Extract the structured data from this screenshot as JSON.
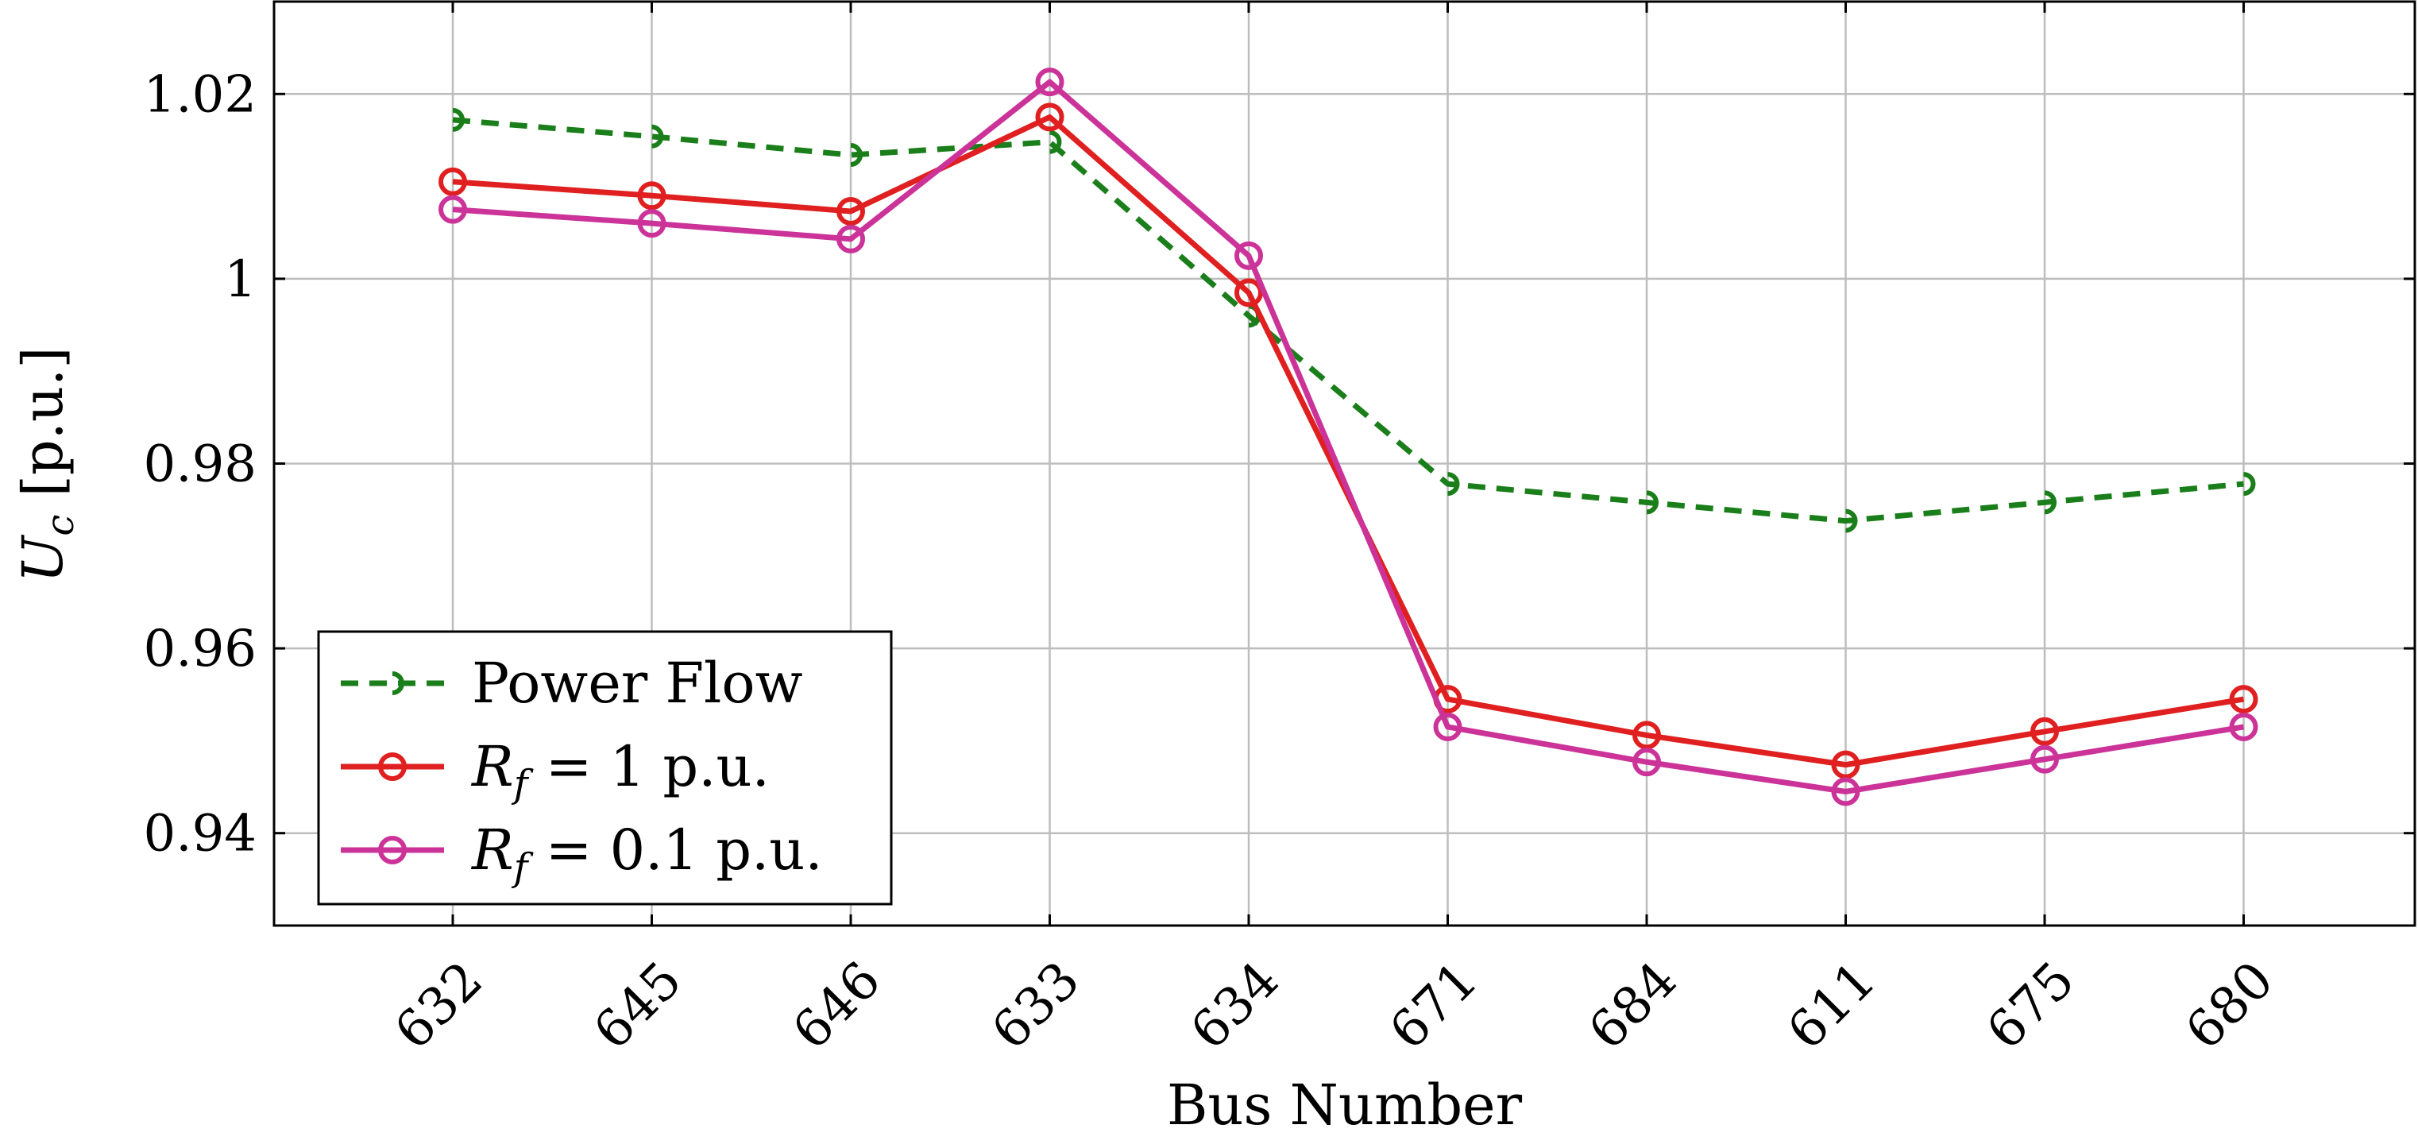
{
  "chart_data": {
    "type": "line",
    "xlabel": "Bus Number",
    "ylabel": "U",
    "ylabel_sub": "c",
    "ylabel_unit": " [p.u.]",
    "categories": [
      "632",
      "645",
      "646",
      "633",
      "634",
      "671",
      "684",
      "611",
      "675",
      "680"
    ],
    "ylim": [
      0.93,
      1.03
    ],
    "yticks": [
      0.94,
      0.96,
      0.98,
      1.0,
      1.02
    ],
    "ytick_labels": [
      "0.94",
      "0.96",
      "0.98",
      "1",
      "1.02"
    ],
    "grid": true,
    "legend_position": "bottom-left",
    "series": [
      {
        "name": "Power Flow",
        "name_parts": {
          "main": "Power Flow",
          "sub": "",
          "rest": ""
        },
        "color": "#1a7f1a",
        "style": "dashed",
        "marker": "half-circle",
        "values": [
          1.0172,
          1.0154,
          1.0134,
          1.0148,
          0.996,
          0.9778,
          0.9758,
          0.9738,
          0.9758,
          0.9778
        ]
      },
      {
        "name": "Rf = 1 p.u.",
        "name_parts": {
          "main": "R",
          "sub": "f",
          "rest": " = 1 p.u."
        },
        "color": "#e02020",
        "style": "solid",
        "marker": "circle",
        "values": [
          1.0105,
          1.009,
          1.0073,
          1.0175,
          0.9985,
          0.9545,
          0.9506,
          0.9474,
          0.951,
          0.9545
        ]
      },
      {
        "name": "Rf = 0.1 p.u.",
        "name_parts": {
          "main": "R",
          "sub": "f",
          "rest": " = 0.1 p.u."
        },
        "color": "#cc3399",
        "style": "solid",
        "marker": "circle",
        "values": [
          1.0075,
          1.006,
          1.0043,
          1.0213,
          1.0025,
          0.9515,
          0.9477,
          0.9445,
          0.948,
          0.9515
        ]
      }
    ]
  }
}
